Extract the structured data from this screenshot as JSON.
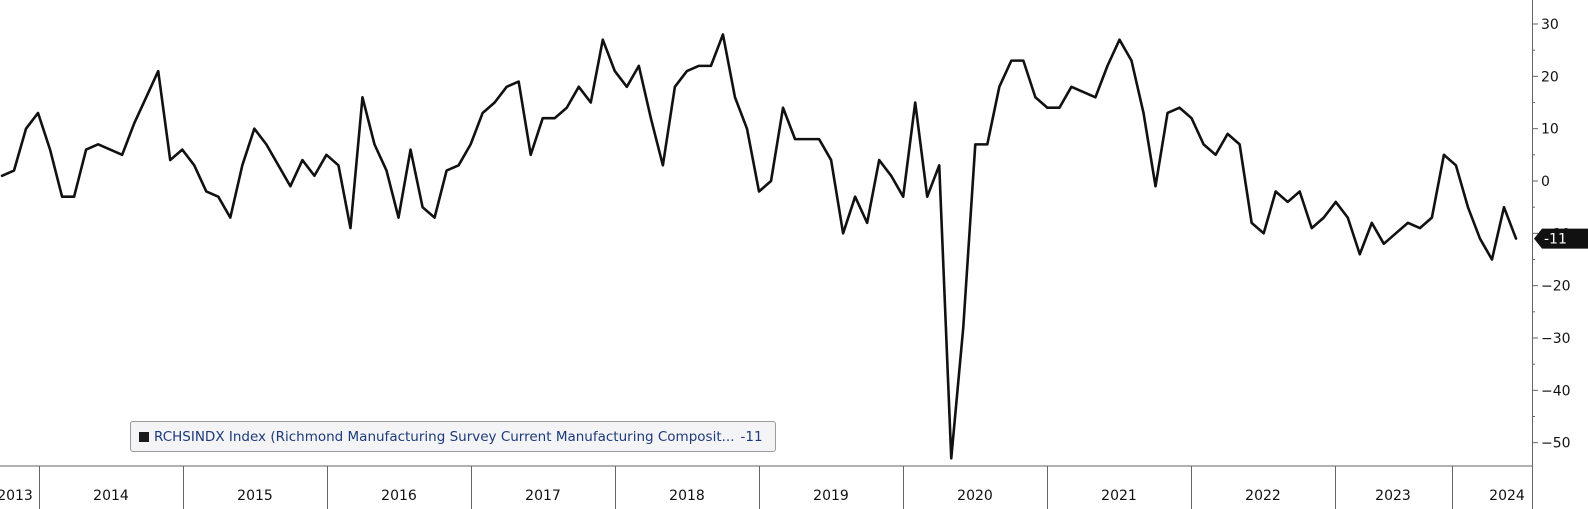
{
  "chart_data": {
    "type": "line",
    "x_ticks": [
      "2013",
      "2014",
      "2015",
      "2016",
      "2017",
      "2018",
      "2019",
      "2020",
      "2021",
      "2022",
      "2023",
      "2024"
    ],
    "y_ticks": [
      30,
      20,
      10,
      0,
      -10,
      -20,
      -30,
      -40,
      -50
    ],
    "ylim": [
      -54,
      34
    ],
    "y_axis_side": "right",
    "grid": false,
    "last_value_label": "-11",
    "series": [
      {
        "color": "#111111",
        "values": [
          1,
          2,
          10,
          13,
          6,
          -3,
          -3,
          6,
          7,
          6,
          5,
          11,
          16,
          21,
          4,
          6,
          3,
          -2,
          -3,
          -7,
          3,
          10,
          7,
          3,
          -1,
          4,
          1,
          5,
          3,
          -9,
          16,
          7,
          2,
          -7,
          6,
          -5,
          -7,
          2,
          3,
          7,
          13,
          15,
          18,
          19,
          5,
          12,
          12,
          14,
          18,
          15,
          27,
          21,
          18,
          22,
          12,
          3,
          18,
          21,
          22,
          22,
          28,
          16,
          10,
          -2,
          0,
          14,
          8,
          8,
          8,
          4,
          -10,
          -3,
          -8,
          4,
          1,
          -3,
          15,
          -3,
          3,
          -53,
          -28,
          7,
          7,
          18,
          23,
          23,
          16,
          14,
          14,
          18,
          17,
          16,
          22,
          27,
          23,
          13,
          -1,
          13,
          14,
          12,
          7,
          5,
          9,
          7,
          -8,
          -10,
          -2,
          -4,
          -2,
          -9,
          -7,
          -4,
          -7,
          -14,
          -8,
          -12,
          -10,
          -8,
          -9,
          -7,
          5,
          3,
          -5,
          -11,
          -15,
          -5,
          -11
        ]
      }
    ],
    "legend": {
      "position": "bottom-left",
      "label": "RCHSINDX Index (Richmond Manufacturing Survey Current Manufacturing Composit...",
      "value": "-11"
    }
  }
}
